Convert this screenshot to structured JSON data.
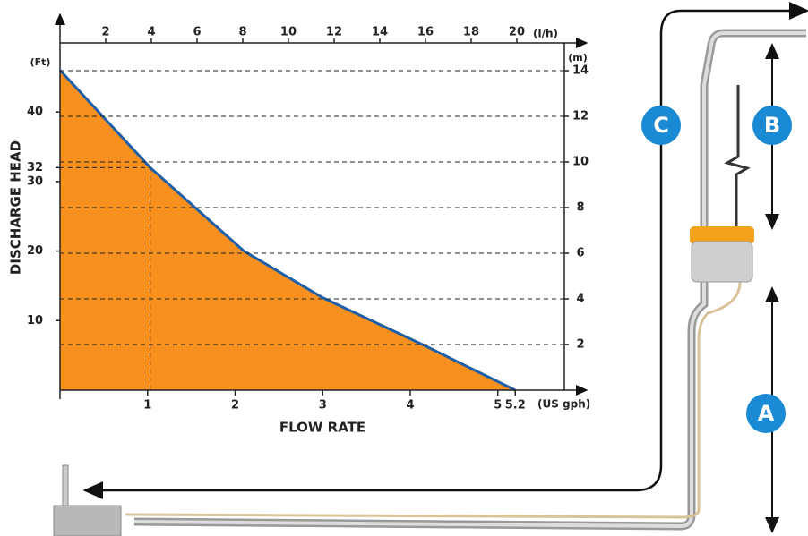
{
  "chart_data": {
    "type": "area",
    "y_label": "DISCHARGE HEAD",
    "x_label": "FLOW RATE",
    "y_unit": "(Ft)",
    "y2_unit": "(m)",
    "x_unit": "(US gph)",
    "x2_unit": "(l/h)",
    "x": [
      0,
      1.03,
      2.1,
      3,
      4.15,
      5.2
    ],
    "values": [
      46,
      32,
      20,
      13.3,
      6.5,
      0
    ],
    "color": "#f7901e",
    "line_color": "#1f5fa8",
    "marker_point": 1,
    "xlim": [
      0,
      5.76
    ],
    "xticks": [
      1,
      2,
      3,
      4,
      5,
      5.2
    ],
    "x2lim": [
      0,
      22.08
    ],
    "x2ticks": [
      2,
      4,
      6,
      8,
      10,
      12,
      14,
      16,
      18,
      20
    ],
    "ylim": [
      0,
      52.5
    ],
    "yticks": [
      10,
      20,
      30,
      32,
      40
    ],
    "y2lim": [
      0,
      16
    ],
    "y2ticks": [
      2,
      4,
      6,
      8,
      10,
      12,
      14
    ],
    "grid": true,
    "callouts": [
      "A",
      "B",
      "C"
    ]
  }
}
